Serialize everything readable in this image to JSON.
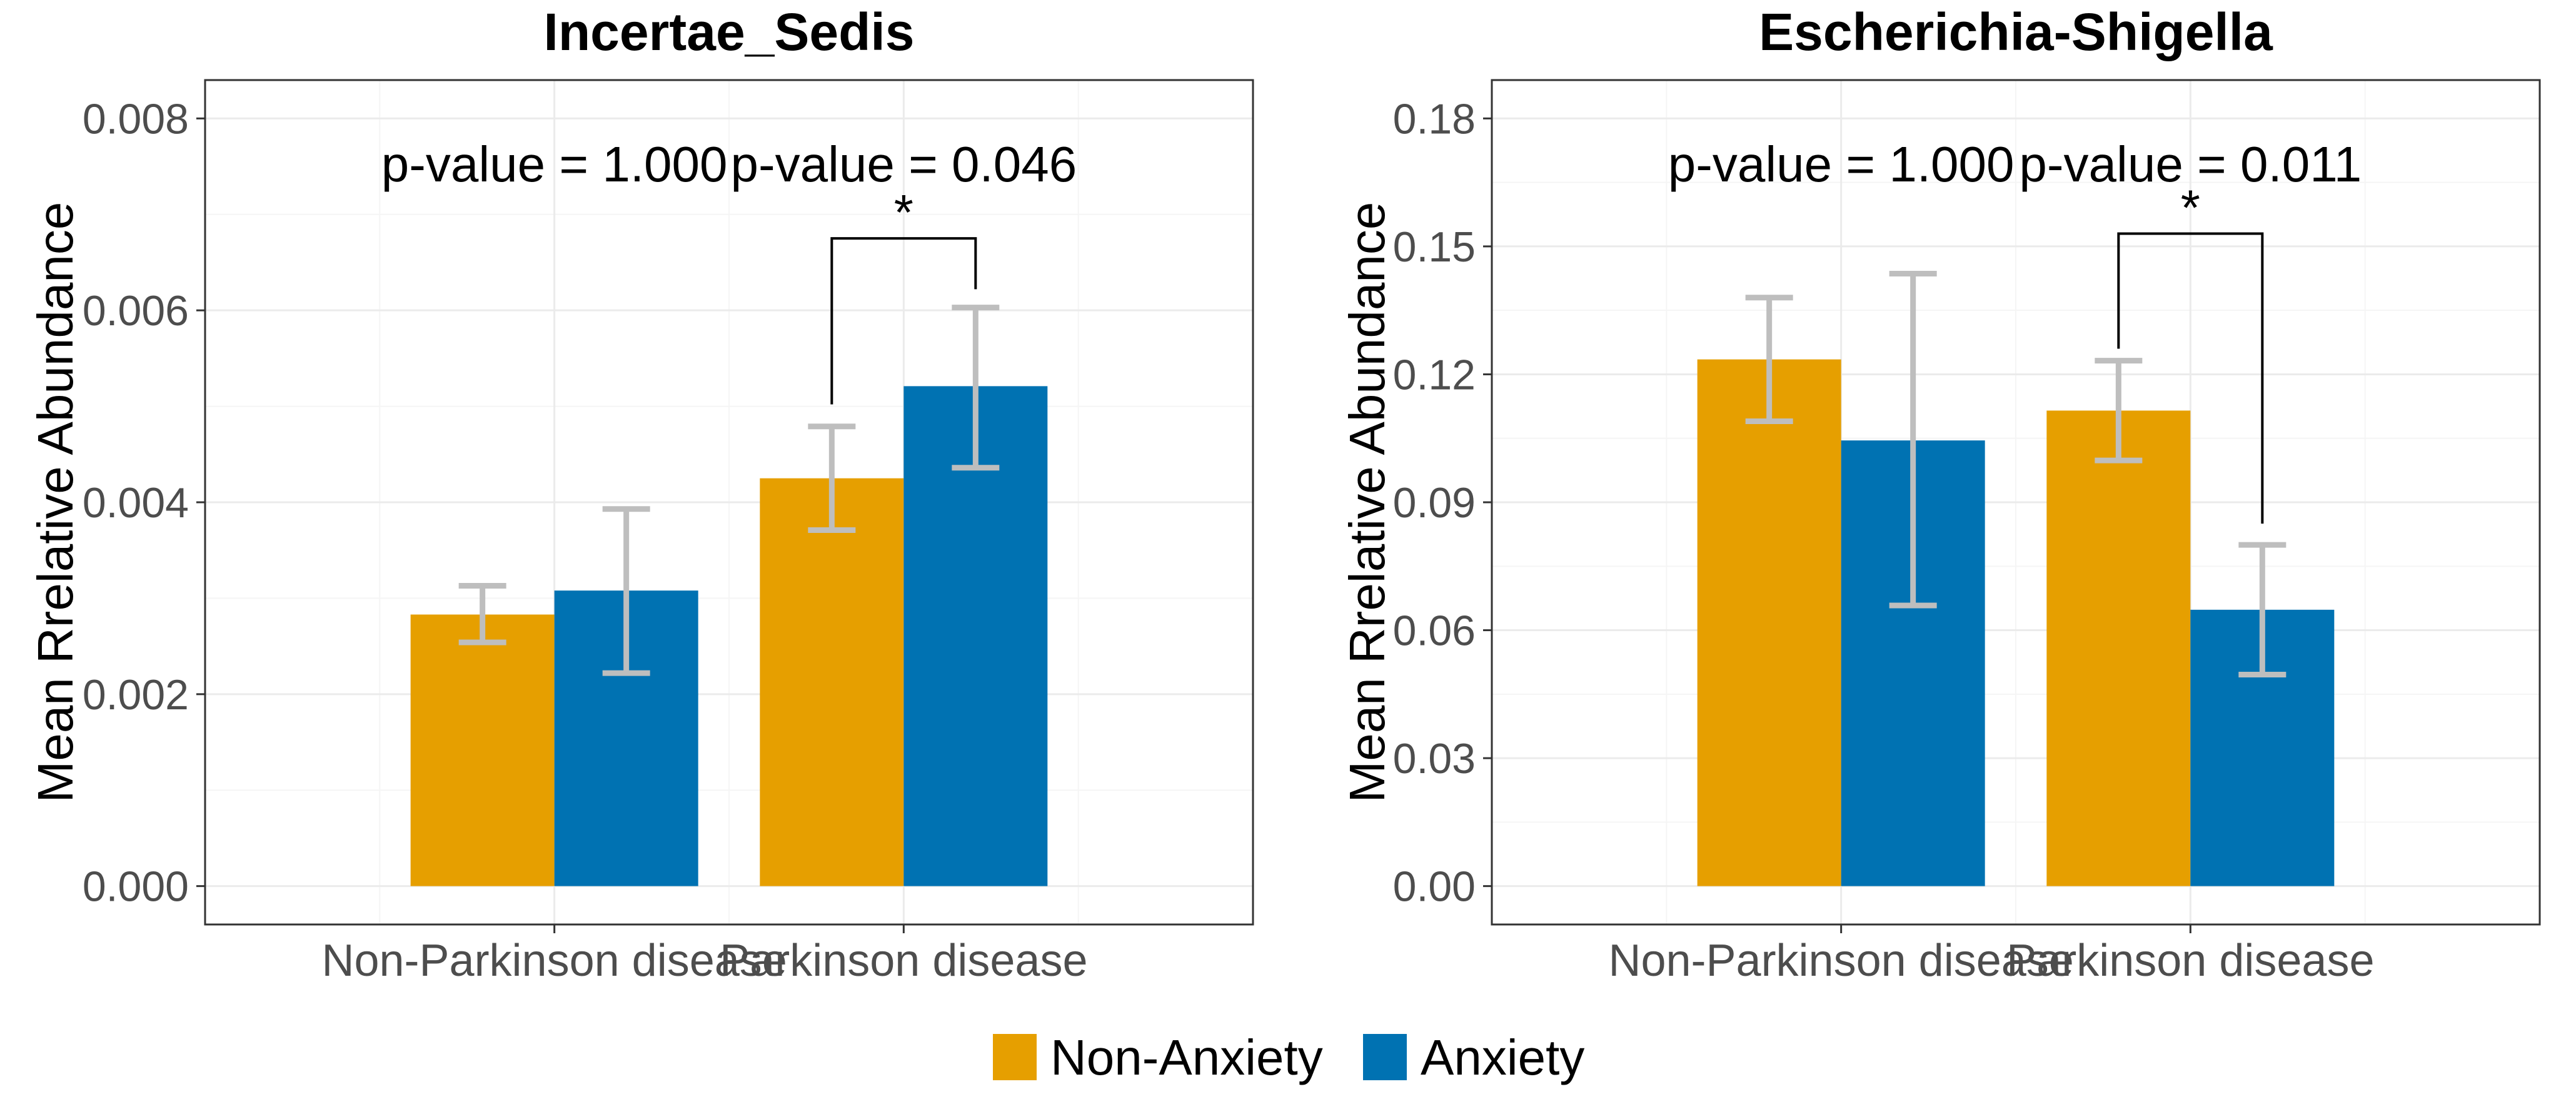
{
  "chart_data": [
    {
      "type": "bar",
      "title": "Incertae_Sedis",
      "ylabel": "Mean Rrelative Abundance",
      "xlabel": "",
      "categories": [
        "Non-Parkinson disease",
        "Parkinson disease"
      ],
      "ylim": [
        -0.0004,
        0.0084
      ],
      "yticks": [
        0.0,
        0.002,
        0.004,
        0.006,
        0.008
      ],
      "ytick_labels": [
        "0.000",
        "0.002",
        "0.004",
        "0.006",
        "0.008"
      ],
      "grid": true,
      "series": [
        {
          "name": "Non-Anxiety",
          "color": "#E69F00",
          "values": [
            0.00283,
            0.00425
          ],
          "err_low": [
            0.00254,
            0.00371
          ],
          "err_high": [
            0.00313,
            0.00479
          ]
        },
        {
          "name": "Anxiety",
          "color": "#0072B2",
          "values": [
            0.00308,
            0.00521
          ],
          "err_low": [
            0.00222,
            0.00436
          ],
          "err_high": [
            0.00393,
            0.00603
          ]
        }
      ],
      "annotations": [
        {
          "category": "Non-Parkinson disease",
          "text": "p-value = 1.000"
        },
        {
          "category": "Parkinson disease",
          "text": "p-value = 0.046",
          "star": "*",
          "bracket_y": 0.00675,
          "left_end": 0.00502,
          "right_end": 0.00622
        }
      ]
    },
    {
      "type": "bar",
      "title": "Escherichia-Shigella",
      "ylabel": "Mean Rrelative Abundance",
      "xlabel": "",
      "categories": [
        "Non-Parkinson disease",
        "Parkinson disease"
      ],
      "ylim": [
        -0.009,
        0.189
      ],
      "yticks": [
        0.0,
        0.03,
        0.06,
        0.09,
        0.12,
        0.15,
        0.18
      ],
      "ytick_labels": [
        "0.00",
        "0.03",
        "0.06",
        "0.09",
        "0.12",
        "0.15",
        "0.18"
      ],
      "grid": true,
      "series": [
        {
          "name": "Non-Anxiety",
          "color": "#E69F00",
          "values": [
            0.1235,
            0.1115
          ],
          "err_low": [
            0.109,
            0.0998
          ],
          "err_high": [
            0.138,
            0.1232
          ]
        },
        {
          "name": "Anxiety",
          "color": "#0072B2",
          "values": [
            0.1045,
            0.0648
          ],
          "err_low": [
            0.0658,
            0.0496
          ],
          "err_high": [
            0.1436,
            0.08
          ]
        }
      ],
      "annotations": [
        {
          "category": "Non-Parkinson disease",
          "text": "p-value = 1.000"
        },
        {
          "category": "Parkinson disease",
          "text": "p-value = 0.011",
          "star": "*",
          "bracket_y": 0.153,
          "left_end": 0.126,
          "right_end": 0.085
        }
      ]
    }
  ],
  "legend": {
    "position": "bottom",
    "items": [
      {
        "label": "Non-Anxiety",
        "color": "#E69F00"
      },
      {
        "label": "Anxiety",
        "color": "#0072B2"
      }
    ]
  },
  "colors": {
    "error_bar": "#BEBEBE",
    "grid_major": "#EBEBEB",
    "grid_minor": "#F5F5F5",
    "panel_border": "#333333"
  }
}
